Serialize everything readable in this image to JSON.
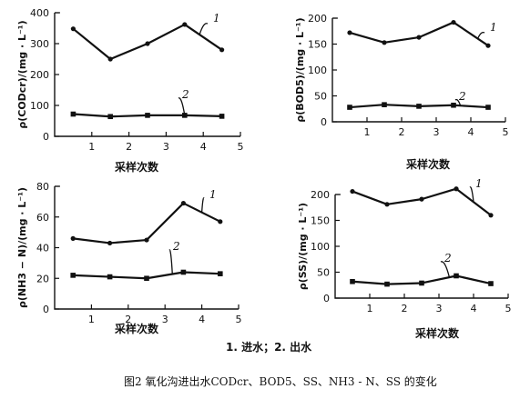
{
  "legend": "1. 进水；2. 出水",
  "caption": "图2   氧化沟进出水CODcr、BOD5、SS、NH3 - N、SS 的变化",
  "chart_data": [
    {
      "type": "line",
      "ylabel": "ρ(CODcr)/(mg · L⁻¹)",
      "xlabel": "采样次数",
      "xlim": [
        0,
        5
      ],
      "ylim": [
        0,
        400
      ],
      "xticks": [
        1,
        2,
        3,
        4,
        5
      ],
      "yticks": [
        0,
        100,
        200,
        300,
        400
      ],
      "x": [
        0.5,
        1.5,
        2.5,
        3.5,
        4.5
      ],
      "series": [
        {
          "name": "1",
          "values": [
            348,
            250,
            300,
            362,
            280
          ]
        },
        {
          "name": "2",
          "values": [
            72,
            64,
            68,
            68,
            65
          ]
        }
      ]
    },
    {
      "type": "line",
      "ylabel": "ρ(BOD5)/(mg · L⁻¹)",
      "xlabel": "采样次数",
      "xlim": [
        0,
        5
      ],
      "ylim": [
        0,
        200
      ],
      "xticks": [
        1,
        2,
        3,
        4,
        5
      ],
      "yticks": [
        0,
        50,
        100,
        150,
        200
      ],
      "x": [
        0.5,
        1.5,
        2.5,
        3.5,
        4.5
      ],
      "series": [
        {
          "name": "1",
          "values": [
            172,
            153,
            163,
            192,
            147
          ]
        },
        {
          "name": "2",
          "values": [
            28,
            33,
            30,
            32,
            28
          ]
        }
      ]
    },
    {
      "type": "line",
      "ylabel": "ρ(NH3 − N)/(mg · L⁻¹)",
      "xlabel": "采样次数",
      "xlim": [
        0,
        5
      ],
      "ylim": [
        0,
        80
      ],
      "xticks": [
        1,
        2,
        3,
        4,
        5
      ],
      "yticks": [
        0,
        20,
        40,
        60,
        80
      ],
      "x": [
        0.5,
        1.5,
        2.5,
        3.5,
        4.5
      ],
      "series": [
        {
          "name": "1",
          "values": [
            46,
            43,
            45,
            69,
            57
          ]
        },
        {
          "name": "2",
          "values": [
            22,
            21,
            20,
            24,
            23
          ]
        }
      ]
    },
    {
      "type": "line",
      "ylabel": "ρ(SS)/(mg · L⁻¹)",
      "xlabel": "采样次数",
      "xlim": [
        0,
        5
      ],
      "ylim": [
        0,
        200
      ],
      "xticks": [
        1,
        2,
        3,
        4,
        5
      ],
      "yticks": [
        0,
        50,
        100,
        150,
        200
      ],
      "x": [
        0.5,
        1.5,
        2.5,
        3.5,
        4.5
      ],
      "series": [
        {
          "name": "1",
          "values": [
            206,
            181,
            191,
            211,
            160
          ]
        },
        {
          "name": "2",
          "values": [
            32,
            27,
            29,
            43,
            28
          ]
        }
      ]
    }
  ]
}
